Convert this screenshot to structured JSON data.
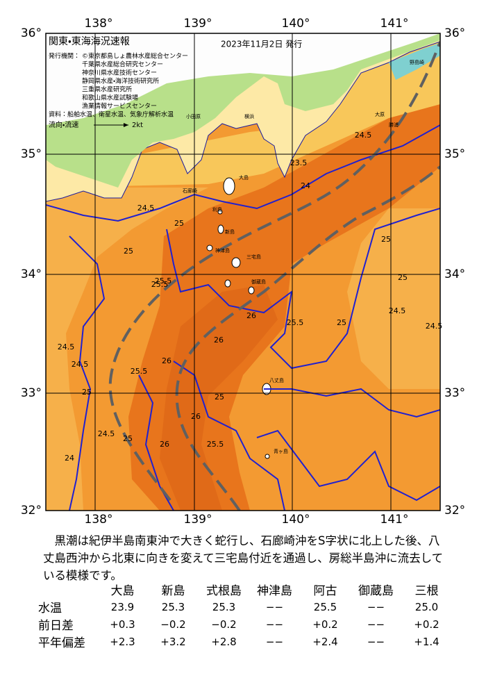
{
  "map": {
    "title": "関東・東海海況速報",
    "date": "2023年11月2日 発行",
    "lon_labels": [
      "138°",
      "139°",
      "140°",
      "141°"
    ],
    "lat_labels": [
      "36°",
      "35°",
      "34°",
      "33°",
      "32°"
    ],
    "issuers_label": "発行機関：",
    "issuers": [
      "©東京都島しょ農林水産総合センター",
      "千葉県水産総合研究センター",
      "神奈川県水産技術センター",
      "静岡県水産・海洋技術研究所",
      "三重県水産研究所",
      "和歌山県水産試験場",
      "漁業情報サービスセンター"
    ],
    "source": "資料：船舶水温、衛星水温、気象庁解析水温",
    "legend_label": "流向・流速",
    "legend_scale": "2kt",
    "contour_labels": [
      "24.5",
      "25",
      "25.5",
      "24.5",
      "25",
      "25.5",
      "25.5",
      "26",
      "26",
      "26",
      "25.5",
      "25",
      "26",
      "26",
      "25.5",
      "25",
      "24.5",
      "24",
      "24.5",
      "25",
      "24.5",
      "24.5",
      "25",
      "25",
      "25",
      "23.5",
      "24",
      "24.5"
    ],
    "place_names": [
      "大島",
      "利島",
      "新島",
      "神津島",
      "三宅島",
      "御蔵島",
      "八丈島",
      "青ヶ島",
      "石廊崎",
      "野島崎",
      "勝浦",
      "大原",
      "小田原",
      "横浜"
    ]
  },
  "description": "黒潮は紀伊半島南東沖で大きく蛇行し、石廊崎沖をS字状に北上した後、八丈島西沖から北東に向きを変えて三宅島付近を通過し、房総半島沖に流去している模様です。",
  "table": {
    "columns": [
      "大島",
      "新島",
      "式根島",
      "神津島",
      "阿古",
      "御蔵島",
      "三根"
    ],
    "rows": [
      {
        "label": "水温",
        "cells": [
          "23.9",
          "25.3",
          "25.3",
          "−−",
          "25.5",
          "−−",
          "25.0"
        ]
      },
      {
        "label": "前日差",
        "cells": [
          "+0.3",
          "−0.2",
          "−0.2",
          "−−",
          "+0.2",
          "−−",
          "+0.2"
        ]
      },
      {
        "label": "平年偏差",
        "cells": [
          "+2.3",
          "+3.2",
          "+2.8",
          "−−",
          "+2.4",
          "−−",
          "+1.4"
        ]
      }
    ]
  }
}
